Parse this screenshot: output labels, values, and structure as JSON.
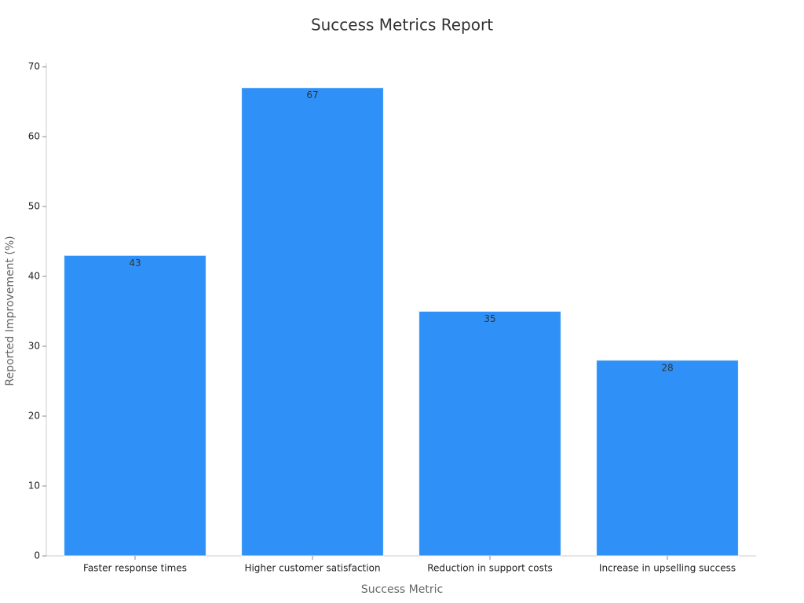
{
  "chart_data": {
    "type": "bar",
    "title": "Success Metrics Report",
    "x_label": "Success Metric",
    "y_label": "Reported Improvement (%)",
    "categories": [
      "Faster response times",
      "Higher customer satisfaction",
      "Reduction in support costs",
      "Increase in upselling success"
    ],
    "values": [
      43,
      67,
      35,
      28
    ],
    "color": "#2f91f7",
    "ylim": [
      0,
      70
    ],
    "yticks": [
      0,
      10,
      20,
      30,
      40,
      50,
      60,
      70
    ],
    "grid": false
  }
}
